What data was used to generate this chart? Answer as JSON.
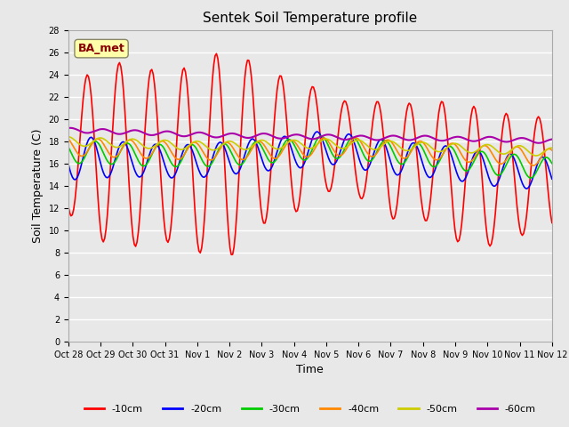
{
  "title": "Sentek Soil Temperature profile",
  "xlabel": "Time",
  "ylabel": "Soil Temperature (C)",
  "annotation": "BA_met",
  "ylim": [
    0,
    28
  ],
  "yticks": [
    0,
    2,
    4,
    6,
    8,
    10,
    12,
    14,
    16,
    18,
    20,
    22,
    24,
    26,
    28
  ],
  "x_labels": [
    "Oct 28",
    "Oct 29",
    "Oct 30",
    "Oct 31",
    "Nov 1",
    "Nov 2",
    "Nov 3",
    "Nov 4",
    "Nov 5",
    "Nov 6",
    "Nov 7",
    "Nov 8",
    "Nov 9",
    "Nov 10",
    "Nov 11",
    "Nov 12"
  ],
  "colors": {
    "-10cm": "#ff0000",
    "-20cm": "#0000ff",
    "-30cm": "#00cc00",
    "-40cm": "#ff8800",
    "-50cm": "#cccc00",
    "-60cm": "#aa00aa"
  },
  "legend_labels": [
    "-10cm",
    "-20cm",
    "-30cm",
    "-40cm",
    "-50cm",
    "-60cm"
  ],
  "bg_color": "#e8e8e8",
  "title_fontsize": 11,
  "label_fontsize": 9,
  "tick_fontsize": 7,
  "annotation_bg": "#ffffaa",
  "annotation_fg": "#880000"
}
